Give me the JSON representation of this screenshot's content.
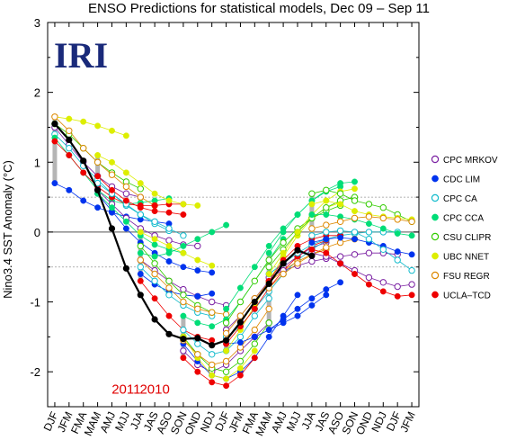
{
  "chart_data": {
    "type": "line",
    "title": "ENSO Predictions for statistical models, Dec 09 – Sep 11",
    "ylabel": "Nino3.4 SST Anomaly (°C)",
    "xlabel": "",
    "logo": "IRI",
    "year_labels": [
      {
        "text": "2010",
        "at": "JAS"
      },
      {
        "text": "2011",
        "at": "MJJ"
      }
    ],
    "ylim": [
      -2.5,
      3
    ],
    "yticks": [
      -2,
      -1,
      0,
      1,
      2,
      3
    ],
    "reference_lines": [
      0.5,
      -0.5
    ],
    "categories": [
      "DJF",
      "JFM",
      "FMA",
      "MAM",
      "AMJ",
      "MJJ",
      "JJA",
      "JAS",
      "ASO",
      "SON",
      "OND",
      "NDJ",
      "DJF",
      "JFM",
      "FMA",
      "MAM",
      "AMJ",
      "MJJ",
      "JJA",
      "JAS",
      "ASO",
      "SON",
      "OND",
      "NDJ",
      "DJF",
      "JFM"
    ],
    "observed": {
      "values": [
        1.55,
        1.32,
        1.02,
        0.6,
        0.05,
        -0.52,
        -0.9,
        -1.25,
        -1.46,
        -1.53,
        -1.52,
        -1.62,
        -1.55,
        -1.29,
        -1.0,
        -0.74,
        -0.45,
        -0.26,
        -0.34,
        null,
        null,
        null,
        null,
        null,
        null,
        null
      ],
      "color": "#000000"
    },
    "legend": [
      {
        "name": "CPC MRKOV",
        "color": "#7a1fa2",
        "hollow": true
      },
      {
        "name": "CDC LIM",
        "color": "#0033ee",
        "hollow": false
      },
      {
        "name": "CPC CA",
        "color": "#11bbcc",
        "hollow": true
      },
      {
        "name": "CPC CCA",
        "color": "#00dd77",
        "hollow": false
      },
      {
        "name": "CSU CLIPR",
        "color": "#33cc00",
        "hollow": true
      },
      {
        "name": "UBC NNET",
        "color": "#ddee00",
        "hollow": false
      },
      {
        "name": "FSU REGR",
        "color": "#dd8800",
        "hollow": true
      },
      {
        "name": "UCLA–TCD",
        "color": "#ee0000",
        "hollow": false
      }
    ],
    "forecasts": [
      {
        "model": "CPC MRKOV",
        "start": 0,
        "values": [
          1.5,
          1.25,
          1.0,
          0.8,
          0.65,
          0.55,
          0.5
        ]
      },
      {
        "model": "CDC LIM",
        "start": 0,
        "values": [
          0.7,
          0.6,
          0.45,
          0.35,
          0.28,
          0.22,
          0.18,
          0.15,
          0.12
        ]
      },
      {
        "model": "CPC CA",
        "start": 0,
        "values": [
          1.4,
          1.2,
          0.95,
          0.75,
          0.55,
          0.38,
          0.25,
          0.12,
          0.02
        ]
      },
      {
        "model": "CPC CCA",
        "start": 0,
        "values": [
          1.35,
          1.1,
          0.85,
          0.6,
          0.45,
          0.4,
          0.42,
          0.45,
          0.48
        ]
      },
      {
        "model": "CSU CLIPR",
        "start": 0,
        "values": [
          1.55,
          1.4,
          1.2,
          1.0,
          0.85,
          0.72,
          0.62
        ]
      },
      {
        "model": "UBC NNET",
        "start": 0,
        "values": [
          1.65,
          1.62,
          1.58,
          1.52,
          1.45,
          1.38
        ]
      },
      {
        "model": "FSU REGR",
        "start": 0,
        "values": [
          1.65,
          1.45,
          1.2,
          1.0,
          0.82,
          0.65,
          0.5,
          0.38
        ]
      },
      {
        "model": "UCLA–TCD",
        "start": 0,
        "values": [
          1.3,
          1.1,
          0.85,
          0.65,
          0.5,
          0.4,
          0.38,
          0.38,
          0.4,
          0.4
        ]
      },
      {
        "model": "CPC MRKOV",
        "start": 3,
        "values": [
          0.6,
          0.4,
          0.2,
          0.05,
          -0.05,
          -0.12,
          -0.18,
          -0.2
        ]
      },
      {
        "model": "CDC LIM",
        "start": 3,
        "values": [
          0.55,
          0.3,
          0.05,
          -0.15,
          -0.3,
          -0.42,
          -0.5,
          -0.55,
          -0.58
        ]
      },
      {
        "model": "CPC CA",
        "start": 3,
        "values": [
          0.7,
          0.55,
          0.4,
          0.25,
          0.15,
          0.05,
          -0.05
        ]
      },
      {
        "model": "CPC CCA",
        "start": 3,
        "values": [
          0.55,
          0.35,
          0.15,
          -0.05,
          -0.18,
          -0.25,
          -0.3
        ]
      },
      {
        "model": "UBC NNET",
        "start": 3,
        "values": [
          1.1,
          1.0,
          0.85,
          0.7,
          0.55,
          0.45,
          0.4,
          0.38
        ]
      },
      {
        "model": "UCLA–TCD",
        "start": 3,
        "values": [
          0.8,
          0.6,
          0.45,
          0.35,
          0.3,
          0.28,
          0.25
        ]
      },
      {
        "model": "CPC MRKOV",
        "start": 6,
        "values": [
          -0.4,
          -0.55,
          -0.7,
          -0.82,
          -0.92,
          -1.0,
          -1.05
        ]
      },
      {
        "model": "CDC LIM",
        "start": 6,
        "values": [
          -0.6,
          -0.75,
          -0.85,
          -0.9,
          -0.92,
          -0.88
        ]
      },
      {
        "model": "CPC CA",
        "start": 6,
        "values": [
          -0.5,
          -0.7,
          -0.9,
          -1.05,
          -1.15,
          -1.2
        ]
      },
      {
        "model": "CPC CCA",
        "start": 6,
        "values": [
          -0.3,
          -0.35,
          -0.3,
          -0.2,
          -0.1,
          0.0,
          0.1
        ]
      },
      {
        "model": "CSU CLIPR",
        "start": 6,
        "values": [
          -0.2,
          -0.45,
          -0.7,
          -0.9,
          -1.05,
          -1.15
        ]
      },
      {
        "model": "UBC NNET",
        "start": 6,
        "values": [
          0.0,
          -0.1,
          -0.2,
          -0.3,
          -0.4,
          -0.48
        ]
      },
      {
        "model": "FSU REGR",
        "start": 6,
        "values": [
          -0.4,
          -0.6,
          -0.8,
          -1.0,
          -1.1,
          -1.15,
          -1.18
        ]
      },
      {
        "model": "UCLA–TCD",
        "start": 6,
        "values": [
          -0.7,
          -0.95,
          -1.2,
          -1.4,
          -1.5,
          -1.55
        ]
      },
      {
        "model": "CPC MRKOV",
        "start": 9,
        "values": [
          -1.7,
          -1.9,
          -2.0,
          -1.9,
          -1.7,
          -1.5,
          -1.3
        ]
      },
      {
        "model": "CDC LIM",
        "start": 9,
        "values": [
          -1.6,
          -1.85,
          -2.05,
          -2.1,
          -2.0,
          -1.8,
          -1.5,
          -1.2,
          -0.9
        ]
      },
      {
        "model": "CPC CA",
        "start": 9,
        "values": [
          -1.4,
          -1.6,
          -1.75,
          -1.7,
          -1.5,
          -1.2,
          -0.95
        ]
      },
      {
        "model": "CPC CCA",
        "start": 9,
        "values": [
          -1.2,
          -1.3,
          -1.35,
          -1.25,
          -1.0,
          -0.7,
          -0.4,
          -0.1
        ]
      },
      {
        "model": "CSU CLIPR",
        "start": 9,
        "values": [
          -1.5,
          -1.75,
          -1.95,
          -2.0,
          -1.85,
          -1.6,
          -1.3
        ]
      },
      {
        "model": "UBC NNET",
        "start": 9,
        "values": [
          -1.5,
          -1.8,
          -2.05,
          -2.1,
          -1.95,
          -1.7
        ]
      },
      {
        "model": "FSU REGR",
        "start": 9,
        "values": [
          -1.55,
          -1.75,
          -1.9,
          -1.85,
          -1.65,
          -1.4,
          -1.1
        ]
      },
      {
        "model": "UCLA–TCD",
        "start": 9,
        "values": [
          -1.8,
          -2.0,
          -2.15,
          -2.2,
          -2.05,
          -1.8
        ]
      },
      {
        "model": "CPC MRKOV",
        "start": 12,
        "values": [
          -1.4,
          -1.2,
          -0.95,
          -0.7,
          -0.5,
          -0.35,
          -0.22,
          -0.15
        ]
      },
      {
        "model": "CDC LIM",
        "start": 12,
        "values": [
          -1.6,
          -1.58,
          -1.5,
          -1.4,
          -1.25,
          -1.1,
          -0.95,
          -0.82,
          -0.72
        ]
      },
      {
        "model": "CPC CA",
        "start": 12,
        "values": [
          -1.5,
          -1.35,
          -1.1,
          -0.85,
          -0.6,
          -0.4,
          -0.25,
          -0.12
        ]
      },
      {
        "model": "CPC CCA",
        "start": 12,
        "values": [
          -1.1,
          -0.8,
          -0.5,
          -0.2,
          0.05,
          0.25,
          0.45,
          0.58,
          0.65
        ]
      },
      {
        "model": "CSU CLIPR",
        "start": 12,
        "values": [
          -1.3,
          -1.0,
          -0.7,
          -0.4,
          -0.15,
          0.05,
          0.2,
          0.3,
          0.38
        ]
      },
      {
        "model": "UBC NNET",
        "start": 12,
        "values": [
          -1.7,
          -1.4,
          -1.05,
          -0.7,
          -0.35,
          -0.05,
          0.2,
          0.35,
          0.42
        ]
      },
      {
        "model": "FSU REGR",
        "start": 12,
        "values": [
          -1.45,
          -1.2,
          -0.95,
          -0.72,
          -0.55,
          -0.42,
          -0.32,
          -0.25
        ]
      },
      {
        "model": "UCLA–TCD",
        "start": 12,
        "values": [
          -1.6,
          -1.35,
          -1.1,
          -0.8,
          -0.55,
          -0.35,
          -0.2,
          -0.12
        ]
      },
      {
        "model": "CPC MRKOV",
        "start": 15,
        "values": [
          -0.65,
          -0.55,
          -0.48,
          -0.42,
          -0.38,
          -0.35,
          -0.32,
          -0.3,
          -0.3,
          -0.32
        ]
      },
      {
        "model": "CDC LIM",
        "start": 15,
        "values": [
          -1.4,
          -1.3,
          -1.2,
          -1.05,
          -0.9
        ]
      },
      {
        "model": "CPC CA",
        "start": 15,
        "values": [
          -0.6,
          -0.45,
          -0.3,
          -0.18,
          -0.1,
          -0.05,
          -0.02,
          0.0,
          0.0,
          0.0
        ]
      },
      {
        "model": "CPC CCA",
        "start": 15,
        "values": [
          -0.3,
          0.0,
          0.25,
          0.45,
          0.6,
          0.7,
          0.72
        ]
      },
      {
        "model": "CSU CLIPR",
        "start": 15,
        "values": [
          -0.5,
          -0.25,
          0.0,
          0.2,
          0.35,
          0.45,
          0.5
        ]
      },
      {
        "model": "UBC NNET",
        "start": 15,
        "values": [
          -0.6,
          -0.3,
          0.0,
          0.25,
          0.45,
          0.58,
          0.62
        ]
      },
      {
        "model": "FSU REGR",
        "start": 15,
        "values": [
          -0.8,
          -0.6,
          -0.45,
          -0.32,
          -0.22,
          -0.15,
          -0.1
        ]
      },
      {
        "model": "UCLA–TCD",
        "start": 15,
        "values": [
          -0.7,
          -0.4,
          -0.2,
          -0.1,
          -0.05,
          -0.05
        ]
      },
      {
        "model": "CPC MRKOV",
        "start": 18,
        "values": [
          -0.3,
          -0.35,
          -0.45,
          -0.55,
          -0.65,
          -0.72,
          -0.78,
          -0.75
        ]
      },
      {
        "model": "CDC LIM",
        "start": 18,
        "values": [
          -0.15,
          -0.1,
          -0.08,
          -0.1,
          -0.15,
          -0.2,
          -0.28,
          -0.32
        ]
      },
      {
        "model": "CPC CA",
        "start": 18,
        "values": [
          -0.05,
          0.0,
          0.02,
          0.0,
          -0.1,
          -0.25,
          -0.4,
          -0.55
        ]
      },
      {
        "model": "CPC CCA",
        "start": 18,
        "values": [
          0.25,
          0.25,
          0.22,
          0.18,
          0.12,
          0.05,
          -0.02,
          -0.05
        ]
      },
      {
        "model": "CSU CLIPR",
        "start": 18,
        "values": [
          0.55,
          0.6,
          0.55,
          0.45,
          0.4,
          0.35,
          0.25,
          0.15
        ]
      },
      {
        "model": "UBC NNET",
        "start": 18,
        "values": [
          0.4,
          0.45,
          0.4,
          0.3,
          0.25,
          0.22,
          0.2,
          0.18
        ]
      },
      {
        "model": "FSU REGR",
        "start": 18,
        "values": [
          0.05,
          0.1,
          0.15,
          0.2,
          0.22,
          0.2,
          0.18,
          0.15
        ]
      },
      {
        "model": "UCLA–TCD",
        "start": 18,
        "values": [
          -0.25,
          -0.3,
          -0.45,
          -0.6,
          -0.75,
          -0.85,
          -0.92,
          -0.9
        ]
      }
    ]
  }
}
